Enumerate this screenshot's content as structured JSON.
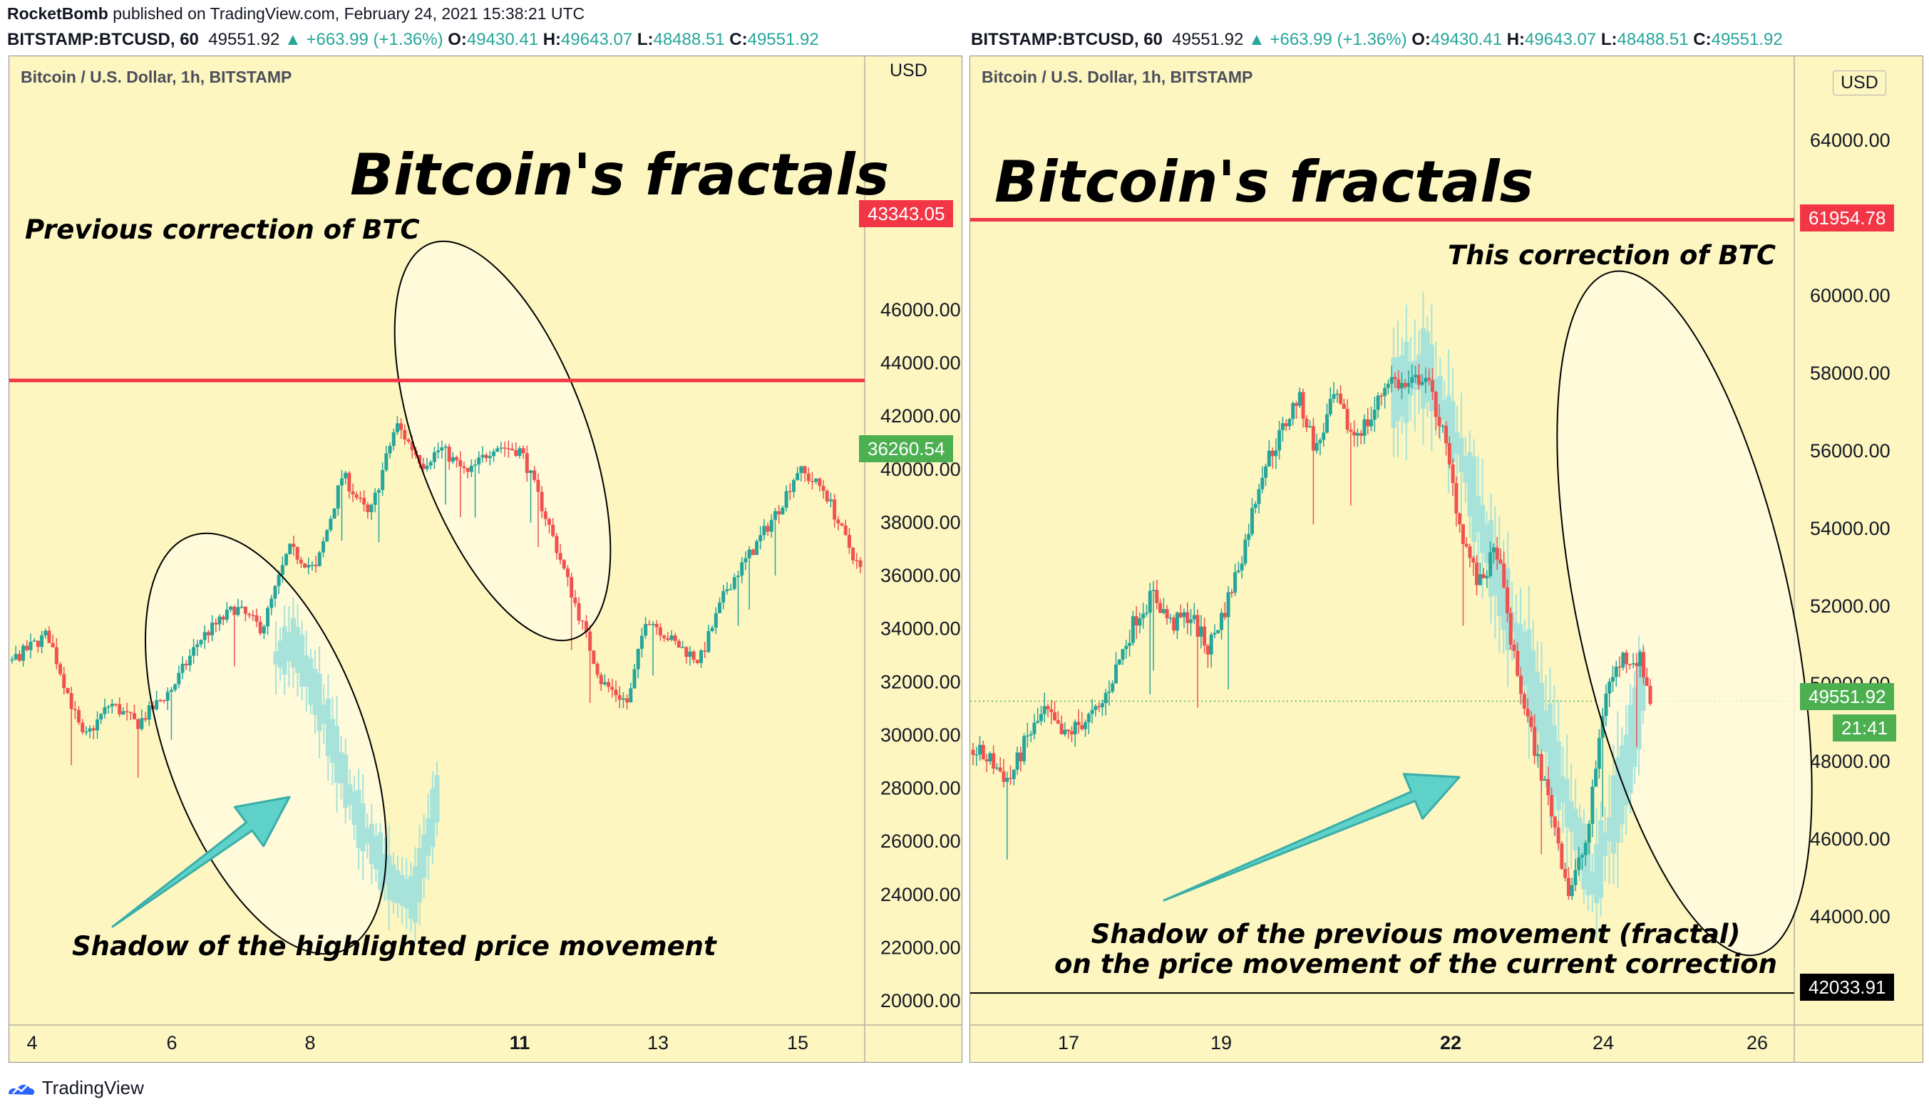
{
  "header": {
    "author": "RocketBomb",
    "published": "published on TradingView.com, February 24, 2021 15:38:21 UTC",
    "symbol": "BITSTAMP:BTCUSD, 60",
    "last": "49551.92",
    "change": "▲ +663.99 (+1.36%)",
    "o_label": "O:",
    "o": "49430.41",
    "h_label": "H:",
    "h": "49643.07",
    "l_label": "L:",
    "l": "48488.51",
    "c_label": "C:",
    "c": "49551.92"
  },
  "left_chart": {
    "subtitle": "Bitcoin / U.S. Dollar, 1h, BITSTAMP",
    "big_title": "Bitcoin's fractals",
    "note_top": "Previous correction of BTC",
    "note_bottom": "Shadow of the highlighted price movement",
    "currency": "USD",
    "level_tag": "43343.05",
    "price_tag": "36260.54"
  },
  "right_chart": {
    "subtitle": "Bitcoin / U.S. Dollar, 1h, BITSTAMP",
    "big_title": "Bitcoin's fractals",
    "note_top": "This correction of BTC",
    "note_bottom_1": "Shadow of the previous movement (fractal)",
    "note_bottom_2": "on the price movement of the current correction",
    "currency": "USD",
    "level_tag": "61954.78",
    "price_tag": "49551.92",
    "countdown": "21:41",
    "low_tag": "42033.91"
  },
  "footer": {
    "brand": "TradingView"
  },
  "colors": {
    "bg": "#fdf6c1",
    "up": "#26a69a",
    "down": "#ef5350",
    "level": "#f23645",
    "shadow": "#a7e3da",
    "arrow": "#5ed1c9"
  },
  "chart_data": [
    {
      "type": "candlestick",
      "title": "Bitcoin / U.S. Dollar, 1h, BITSTAMP",
      "y_ticks": [
        20000,
        22000,
        24000,
        26000,
        28000,
        30000,
        32000,
        34000,
        36000,
        38000,
        40000,
        42000,
        44000,
        46000
      ],
      "x_ticks": [
        "4",
        "6",
        "8",
        "11",
        "13",
        "15"
      ],
      "ylim": [
        19000,
        47200
      ],
      "resistance_level": 43343.05,
      "last_price": 36260.54,
      "path": [
        [
          0,
          32800
        ],
        [
          4,
          33800
        ],
        [
          8,
          29800
        ],
        [
          11,
          31200
        ],
        [
          14,
          30400
        ],
        [
          18,
          31800
        ],
        [
          21,
          33600
        ],
        [
          25,
          34800
        ],
        [
          28,
          34000
        ],
        [
          31,
          37000
        ],
        [
          34,
          36200
        ],
        [
          37,
          39800
        ],
        [
          40,
          38200
        ],
        [
          43,
          41700
        ],
        [
          46,
          40200
        ],
        [
          48,
          40800
        ],
        [
          51,
          39800
        ],
        [
          54,
          40900
        ],
        [
          57,
          40700
        ],
        [
          60,
          38000
        ],
        [
          63,
          35000
        ],
        [
          66,
          32000
        ],
        [
          69,
          31200
        ],
        [
          71,
          34500
        ],
        [
          74,
          33500
        ],
        [
          77,
          32800
        ],
        [
          80,
          35500
        ],
        [
          83,
          37000
        ],
        [
          86,
          38600
        ],
        [
          88,
          40000
        ],
        [
          91,
          39200
        ],
        [
          93,
          37600
        ],
        [
          95,
          36200
        ]
      ],
      "shadow_path": [
        [
          0,
          32900
        ],
        [
          8,
          33500
        ],
        [
          20,
          31000
        ],
        [
          35,
          27000
        ],
        [
          50,
          24500
        ],
        [
          60,
          23800
        ],
        [
          70,
          27600
        ]
      ]
    },
    {
      "type": "candlestick",
      "title": "Bitcoin / U.S. Dollar, 1h, BITSTAMP",
      "y_ticks": [
        44000,
        46000,
        48000,
        50000,
        52000,
        54000,
        56000,
        58000,
        60000,
        62000,
        64000
      ],
      "x_ticks": [
        "17",
        "19",
        "22",
        "24",
        "26"
      ],
      "ylim": [
        42000,
        65400
      ],
      "resistance_level": 61954.78,
      "support_level": 42033.91,
      "last_price": 49551.92,
      "path": [
        [
          0,
          48300
        ],
        [
          2,
          48000
        ],
        [
          4,
          47500
        ],
        [
          6,
          48600
        ],
        [
          8,
          49300
        ],
        [
          10,
          48600
        ],
        [
          12,
          49000
        ],
        [
          14,
          49300
        ],
        [
          16,
          50500
        ],
        [
          18,
          51700
        ],
        [
          20,
          52300
        ],
        [
          22,
          51500
        ],
        [
          24,
          51800
        ],
        [
          26,
          50900
        ],
        [
          28,
          52000
        ],
        [
          30,
          53500
        ],
        [
          32,
          55500
        ],
        [
          34,
          56400
        ],
        [
          36,
          57400
        ],
        [
          38,
          56000
        ],
        [
          40,
          57400
        ],
        [
          42,
          56400
        ],
        [
          44,
          56800
        ],
        [
          46,
          57900
        ],
        [
          48,
          57600
        ],
        [
          50,
          58000
        ],
        [
          52,
          56500
        ],
        [
          54,
          54000
        ],
        [
          56,
          52500
        ],
        [
          58,
          53500
        ],
        [
          60,
          50500
        ],
        [
          62,
          48500
        ],
        [
          64,
          46800
        ],
        [
          66,
          44600
        ],
        [
          68,
          46000
        ],
        [
          70,
          49800
        ],
        [
          72,
          50700
        ],
        [
          74,
          50600
        ],
        [
          75,
          49550
        ]
      ],
      "shadow_path": [
        [
          40,
          57500
        ],
        [
          44,
          58200
        ],
        [
          48,
          56000
        ],
        [
          52,
          53000
        ],
        [
          56,
          50500
        ],
        [
          60,
          47500
        ],
        [
          64,
          44800
        ],
        [
          68,
          47800
        ],
        [
          70,
          50000
        ]
      ]
    }
  ]
}
